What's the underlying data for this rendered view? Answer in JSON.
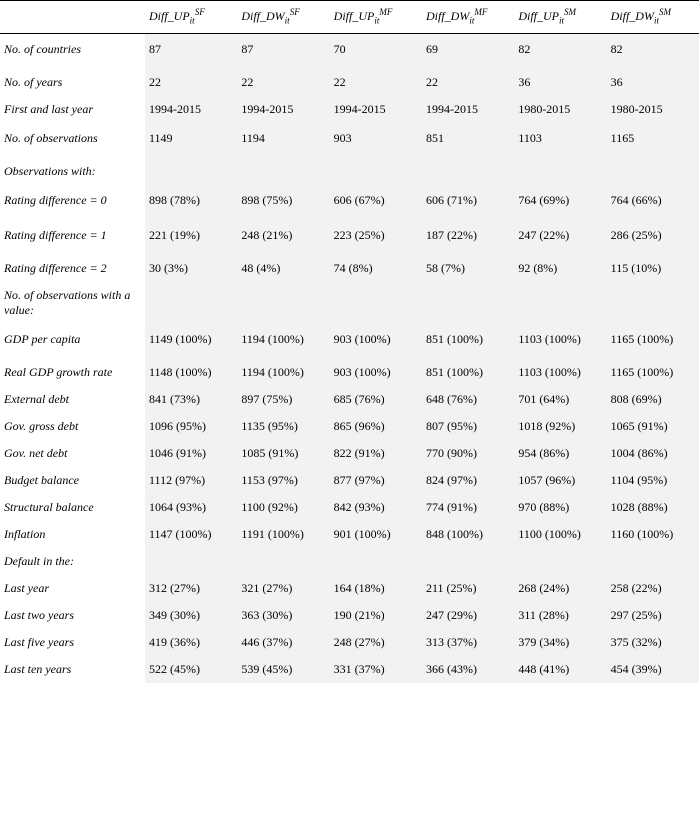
{
  "columns": [
    {
      "prefix": "Diff_UP",
      "sub": "it",
      "sup": "SF"
    },
    {
      "prefix": "Diff_DW",
      "sub": "it",
      "sup": "SF"
    },
    {
      "prefix": "Diff_UP",
      "sub": "it",
      "sup": "MF"
    },
    {
      "prefix": "Diff_DW",
      "sub": "it",
      "sup": "MF"
    },
    {
      "prefix": "Diff_UP",
      "sub": "it",
      "sup": "SM"
    },
    {
      "prefix": "Diff_DW",
      "sub": "it",
      "sup": "SM"
    }
  ],
  "rows": [
    {
      "label": "No. of countries",
      "tall": true,
      "cells": [
        "87",
        "87",
        "70",
        "69",
        "82",
        "82"
      ]
    },
    {
      "label": "No. of years",
      "cells": [
        "22",
        "22",
        "22",
        "22",
        "36",
        "36"
      ]
    },
    {
      "label": "First and last year",
      "cells": [
        "1994-2015",
        "1994-2015",
        "1994-2015",
        "1994-2015",
        "1980-2015",
        "1980-2015"
      ]
    },
    {
      "label": "No. of observations",
      "tall": true,
      "cells": [
        "1149",
        "1194",
        "903",
        "851",
        "1103",
        "1165"
      ]
    },
    {
      "label": "Observations with:",
      "section": true,
      "cells": [
        "",
        "",
        "",
        "",
        "",
        ""
      ]
    },
    {
      "label": "Rating difference = 0",
      "tall": true,
      "cells": [
        "898 (78%)",
        "898 (75%)",
        "606 (67%)",
        "606 (71%)",
        "764 (69%)",
        "764 (66%)"
      ]
    },
    {
      "label": "Rating difference = 1",
      "tall": true,
      "cells": [
        "221 (19%)",
        "248 (21%)",
        "223 (25%)",
        "187 (22%)",
        "247 (22%)",
        "286 (25%)"
      ]
    },
    {
      "label": "Rating difference = 2",
      "cells": [
        "30 (3%)",
        "48 (4%)",
        "74 (8%)",
        "58 (7%)",
        "92 (8%)",
        "115 (10%)"
      ]
    },
    {
      "label": "No. of observations with a value:",
      "section": true,
      "cells": [
        "",
        "",
        "",
        "",
        "",
        ""
      ]
    },
    {
      "label": "GDP per capita",
      "tall": true,
      "cells": [
        "1149 (100%)",
        "1194 (100%)",
        "903 (100%)",
        "851 (100%)",
        "1103 (100%)",
        "1165 (100%)"
      ]
    },
    {
      "label": "Real GDP growth rate",
      "cells": [
        "1148 (100%)",
        "1194 (100%)",
        "903 (100%)",
        "851 (100%)",
        "1103 (100%)",
        "1165 (100%)"
      ]
    },
    {
      "label": "External debt",
      "cells": [
        "841 (73%)",
        "897 (75%)",
        "685 (76%)",
        "648 (76%)",
        "701 (64%)",
        "808 (69%)"
      ]
    },
    {
      "label": "Gov. gross debt",
      "cells": [
        "1096 (95%)",
        "1135 (95%)",
        "865 (96%)",
        "807 (95%)",
        "1018 (92%)",
        "1065 (91%)"
      ]
    },
    {
      "label": "Gov. net debt",
      "cells": [
        "1046 (91%)",
        "1085 (91%)",
        "822 (91%)",
        "770 (90%)",
        "954 (86%)",
        "1004 (86%)"
      ]
    },
    {
      "label": "Budget balance",
      "cells": [
        "1112 (97%)",
        "1153 (97%)",
        "877 (97%)",
        "824 (97%)",
        "1057 (96%)",
        "1104 (95%)"
      ]
    },
    {
      "label": "Structural balance",
      "cells": [
        "1064 (93%)",
        "1100 (92%)",
        "842 (93%)",
        "774 (91%)",
        "970 (88%)",
        "1028 (88%)"
      ]
    },
    {
      "label": "Inflation",
      "cells": [
        "1147 (100%)",
        "1191 (100%)",
        "901 (100%)",
        "848 (100%)",
        "1100 (100%)",
        "1160 (100%)"
      ]
    },
    {
      "label": "Default in the:",
      "section": true,
      "cells": [
        "",
        "",
        "",
        "",
        "",
        ""
      ]
    },
    {
      "label": "Last year",
      "cells": [
        "312 (27%)",
        "321 (27%)",
        "164 (18%)",
        "211 (25%)",
        "268 (24%)",
        "258 (22%)"
      ]
    },
    {
      "label": "Last two years",
      "cells": [
        "349 (30%)",
        "363 (30%)",
        "190 (21%)",
        "247 (29%)",
        "311 (28%)",
        "297 (25%)"
      ]
    },
    {
      "label": "Last five years",
      "cells": [
        "419 (36%)",
        "446 (37%)",
        "248 (27%)",
        "313 (37%)",
        "379 (34%)",
        "375 (32%)"
      ]
    },
    {
      "label": "Last ten years",
      "cells": [
        "522 (45%)",
        "539 (45%)",
        "331 (37%)",
        "366 (43%)",
        "448 (41%)",
        "454 (39%)"
      ]
    }
  ],
  "style": {
    "data_bg": "#f2f2f2",
    "border_color": "#000000",
    "font_family": "Times New Roman",
    "body_font_size": 12
  }
}
